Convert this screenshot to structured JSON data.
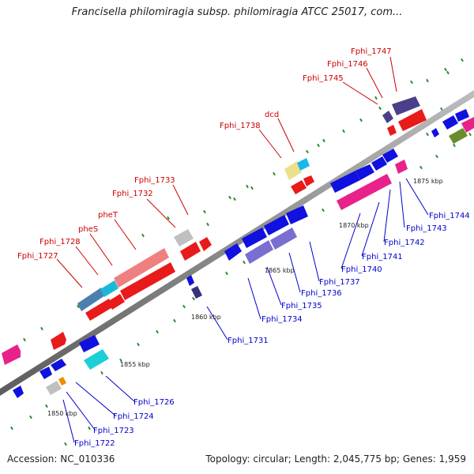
{
  "title": "Francisella philomiragia subsp. philomiragia ATCC 25017, com...",
  "footer": {
    "accession": "Accession: NC_010336",
    "summary": "Topology: circular; Length: 2,045,775 bp; Genes: 1,959"
  },
  "colors": {
    "backbone": "#7a7a7a",
    "label_red": "#cc0000",
    "label_blue": "#0000cc",
    "tick_dot": "#2e8b2e"
  },
  "ticks": [
    "1850 kbp",
    "1855 kbp",
    "1860 kbp",
    "1865 kbp",
    "1870 kbp",
    "1875 kbp"
  ],
  "genes_top": [
    "Fphi_1727",
    "Fphi_1728",
    "pheS",
    "pheT",
    "Fphi_1732",
    "Fphi_1733",
    "Fphi_1738",
    "dcd",
    "Fphi_1745",
    "Fphi_1746",
    "Fphi_1747"
  ],
  "genes_bottom": [
    "Fphi_1722",
    "Fphi_1723",
    "Fphi_1724",
    "Fphi_1726",
    "Fphi_1731",
    "Fphi_1734",
    "Fphi_1735",
    "Fphi_1736",
    "Fphi_1737",
    "Fphi_1740",
    "Fphi_1741",
    "Fphi_1742",
    "Fphi_1743",
    "Fphi_1744"
  ]
}
